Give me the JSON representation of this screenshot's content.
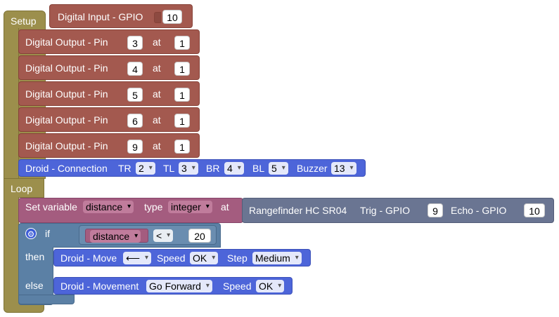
{
  "setup": {
    "label": "Setup",
    "input_block": {
      "label": "Digital Input - GPIO",
      "value": "10"
    },
    "outputs": [
      {
        "label": "Digital Output - Pin",
        "pin": "3",
        "at_label": "at",
        "value": "1"
      },
      {
        "label": "Digital Output - Pin",
        "pin": "4",
        "at_label": "at",
        "value": "1"
      },
      {
        "label": "Digital Output - Pin",
        "pin": "5",
        "at_label": "at",
        "value": "1"
      },
      {
        "label": "Digital Output - Pin",
        "pin": "6",
        "at_label": "at",
        "value": "1"
      },
      {
        "label": "Digital Output - Pin",
        "pin": "9",
        "at_label": "at",
        "value": "1"
      }
    ],
    "connection": {
      "label": "Droid - Connection",
      "tr_label": "TR",
      "tr_value": "2",
      "tl_label": "TL",
      "tl_value": "3",
      "br_label": "BR",
      "br_value": "4",
      "bl_label": "BL",
      "bl_value": "5",
      "buzzer_label": "Buzzer",
      "buzzer_value": "13"
    }
  },
  "loop": {
    "label": "Loop",
    "set_variable": {
      "label": "Set variable",
      "variable": "distance",
      "type_label": "type",
      "type_value": "integer",
      "at_label": "at"
    },
    "rangefinder": {
      "label": "Rangefinder HC SR04",
      "trig_label": "Trig - GPIO",
      "trig_value": "9",
      "echo_label": "Echo - GPIO",
      "echo_value": "10"
    },
    "if_block": {
      "if_label": "if",
      "then_label": "then",
      "else_label": "else",
      "condition": {
        "variable": "distance",
        "operator": "<",
        "value": "20"
      }
    },
    "move": {
      "label": "Droid - Move",
      "direction": "⟵",
      "speed_label": "Speed",
      "speed_value": "OK",
      "step_label": "Step",
      "step_value": "Medium"
    },
    "movement": {
      "label": "Droid - Movement",
      "direction": "Go Forward",
      "speed_label": "Speed",
      "speed_value": "OK"
    }
  },
  "colors": {
    "setup": "#9c8f4c",
    "gpio": "#a3594f",
    "droid": "#4d65d9",
    "variable": "#a45c7f",
    "sensor": "#6a7592",
    "logic": "#5b80a5"
  }
}
